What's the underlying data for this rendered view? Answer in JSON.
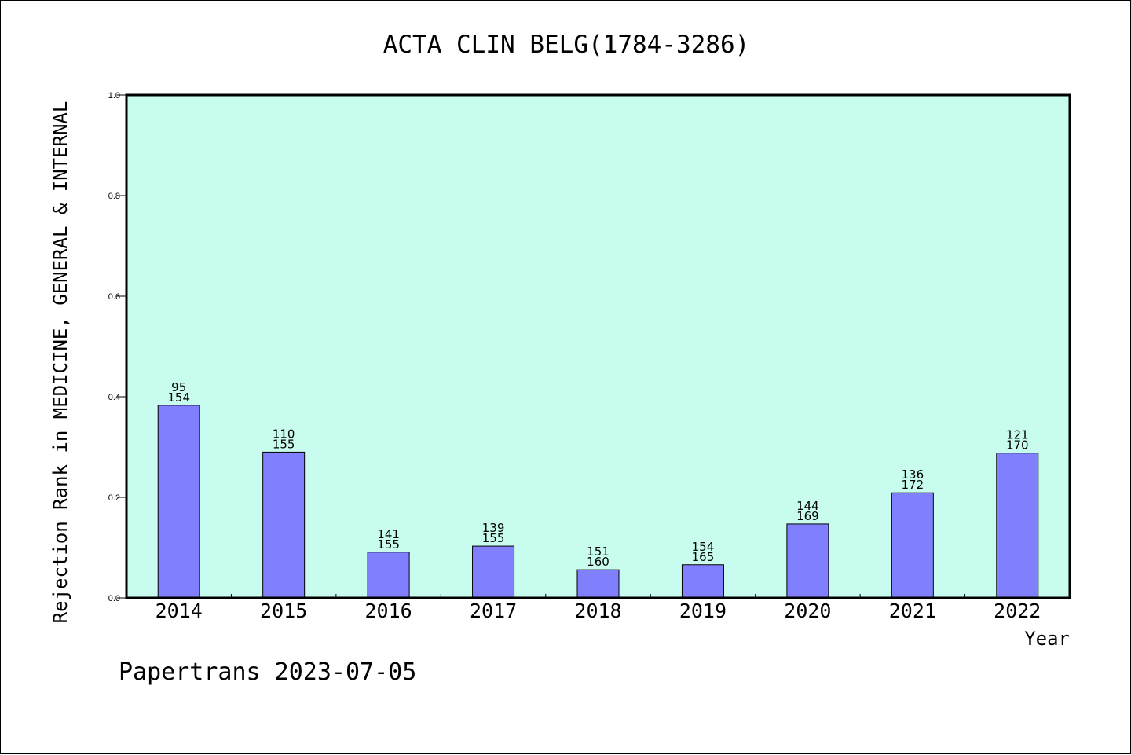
{
  "footer": {
    "text": "Papertrans 2023-07-05"
  },
  "colors": {
    "plot_background": "#c8fcee",
    "bar_fill": "#8080ff",
    "bar_stroke": "#000000"
  },
  "chart_data": {
    "type": "bar",
    "title": "ACTA CLIN BELG(1784-3286)",
    "xlabel": "Year",
    "ylabel": "Rejection Rank in MEDICINE, GENERAL & INTERNAL",
    "ylim": [
      0,
      1.0
    ],
    "yticks": [
      "0.0",
      "0.2",
      "0.4",
      "0.6",
      "0.8",
      "1.0"
    ],
    "grid": false,
    "categories": [
      "2014",
      "2015",
      "2016",
      "2017",
      "2018",
      "2019",
      "2020",
      "2021",
      "2022"
    ],
    "values": [
      0.383,
      0.29,
      0.091,
      0.103,
      0.056,
      0.066,
      0.147,
      0.209,
      0.288
    ],
    "labels": [
      [
        "95",
        "154"
      ],
      [
        "110",
        "155"
      ],
      [
        "141",
        "155"
      ],
      [
        "139",
        "155"
      ],
      [
        "151",
        "160"
      ],
      [
        "154",
        "165"
      ],
      [
        "144",
        "169"
      ],
      [
        "136",
        "172"
      ],
      [
        "121",
        "170"
      ]
    ]
  }
}
